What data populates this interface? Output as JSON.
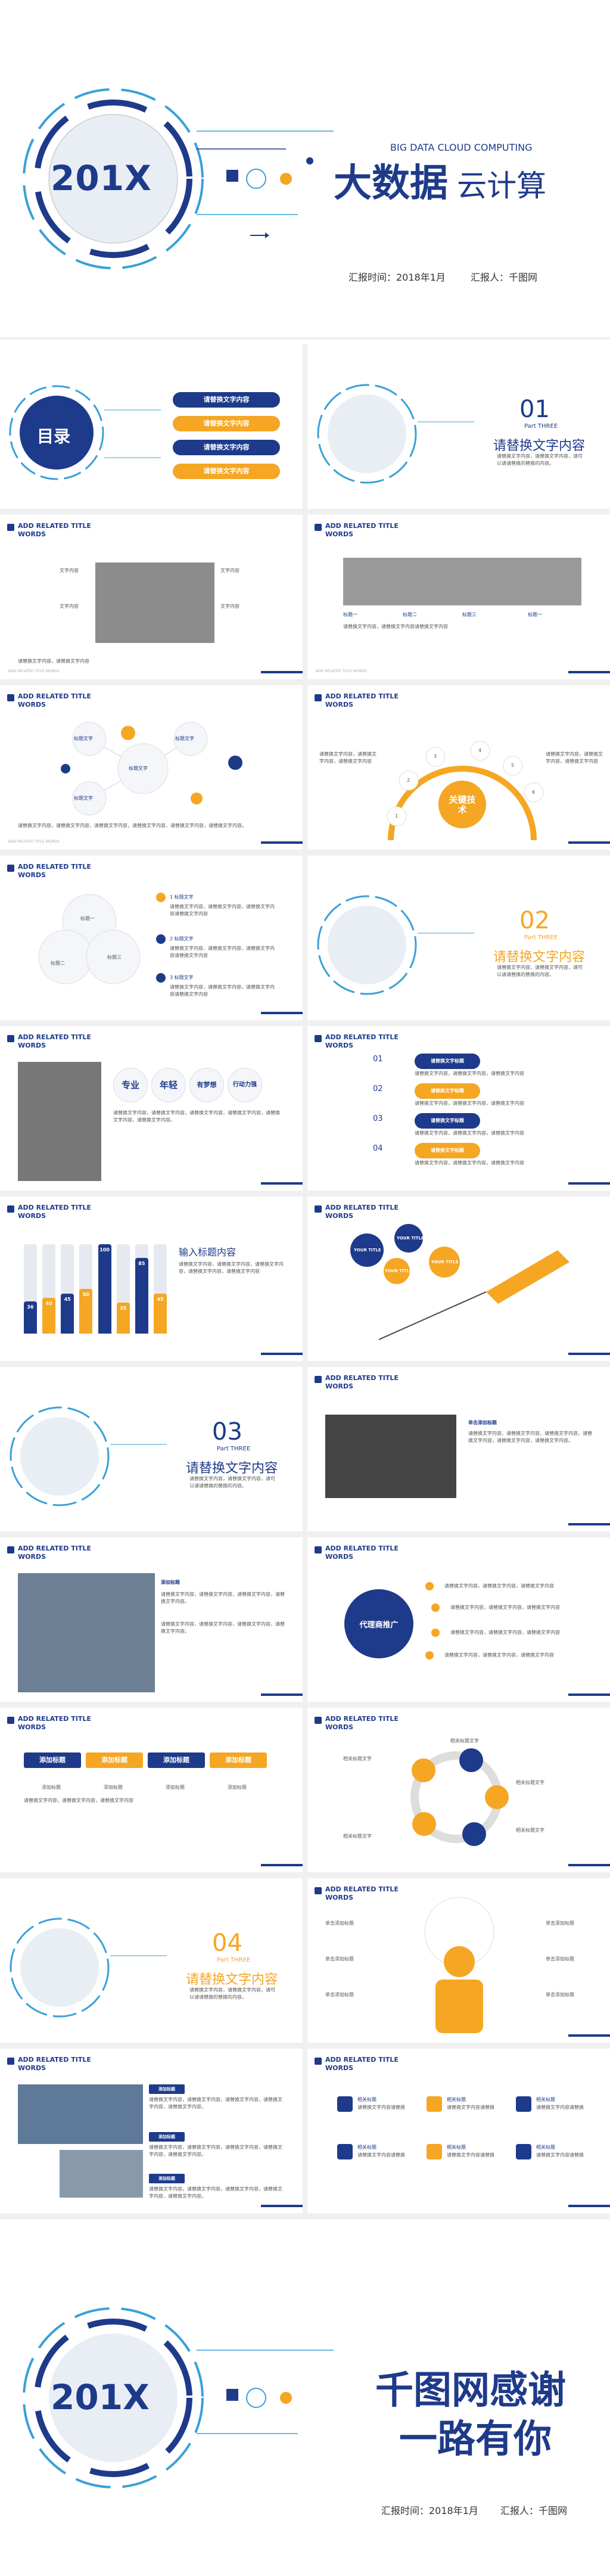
{
  "cover": {
    "brand_number": "201X",
    "subtitle_en": "BIG DATA CLOUD COMPUTING",
    "title_main": "大数据",
    "title_sub": "云计算",
    "report_time": "汇报时间：2018年1月",
    "reporter": "汇报人：千图网"
  },
  "toc": {
    "label": "目录",
    "items": [
      "请替换文字内容",
      "请替换文字内容",
      "请替换文字内容",
      "请替换文字内容"
    ]
  },
  "section1": {
    "number": "01",
    "part": "Part THREE",
    "title": "请替换文字内容",
    "desc": "请替换文字内容，请替换文字内容，请可以请请替换的替换的内容。"
  },
  "section2": {
    "number": "02",
    "part": "Part THREE",
    "title": "请替换文字内容",
    "desc": "请替换文字内容，请替换文字内容，请可以请请替换的替换的内容。"
  },
  "section3": {
    "number": "03",
    "part": "Part THREE",
    "title": "请替换文字内容",
    "desc": "请替换文字内容，请替换文字内容，请可以请请替换的替换的内容。"
  },
  "section4": {
    "number": "04",
    "part": "Part THREE",
    "title": "请替换文字内容",
    "desc": "请替换文字内容，请替换文字内容，请可以请请替换的替换的内容。"
  },
  "header": {
    "title": "ADD RELATED TITLE WORDS"
  },
  "footer": {
    "text": "ADD RELATED TITLE WORDS"
  },
  "slide_text_photos": {
    "labels": [
      "文字内容",
      "文字内容",
      "文字内容",
      "文字内容"
    ],
    "body": "请替换文字内容，请替换文字内容"
  },
  "slide_four_items": {
    "labels": [
      "标题一",
      "标题二",
      "标题三",
      "标题一"
    ],
    "body": "请替换文字内容，请替换文字内容请替换文字内容"
  },
  "slide_bubbles": {
    "center": "标题文字",
    "items": [
      "标题文字",
      "标题文字",
      "标题文字"
    ],
    "body": "请替换文字内容，请替换文字内容，请替换文字内容，请替换文字内容，请替换文字内容，请替换文字内容。"
  },
  "slide_keytech": {
    "center": "关键技术",
    "numbers": [
      "1",
      "2",
      "3",
      "4",
      "5",
      "6"
    ],
    "body": "请替换文字内容，请替换文字内容，请替换文字内容"
  },
  "slide_3circles": {
    "labels": [
      "标题一",
      "标题二",
      "标题三"
    ],
    "items": [
      "1 标题文字",
      "2 标题文字",
      "3 标题文字"
    ],
    "body": "请替换文字内容，请替换文字内容，请替换文字内容请替换文字内容"
  },
  "slide_tags": {
    "tags": [
      "专业",
      "年轻",
      "有梦想",
      "行动力强"
    ],
    "body": "请替换文字内容，请替换文字内容，请替换文字内容，请替换文字内容，请替换文字内容，请替换文字内容。"
  },
  "slide_steps": {
    "numbers": [
      "01",
      "02",
      "03",
      "04"
    ],
    "labels": [
      "请替换文字标题",
      "请替换文字标题",
      "请替换文字标题",
      "请替换文字标题"
    ],
    "body": "请替换文字内容，请替换文字内容，请替换文字内容"
  },
  "slide_bars": {
    "title": "输入标题内容",
    "values": [
      36,
      40,
      45,
      50,
      100,
      35,
      85,
      45
    ],
    "body": "请替换文字内容，请替换文字内容，请替换文字内容，请替换文字内容，请替换文字内容"
  },
  "slide_pen": {
    "labels": [
      "YOUR TITLE",
      "YOUR TITLE",
      "YOUR TITLE",
      "YOUR TITLE"
    ]
  },
  "slide_hands": {
    "heading": "单击添加标题",
    "body": "请替换文字内容，请替换文字内容，请替换文字内容，请替换文字内容，请替换文字内容，请替换文字内容。"
  },
  "slide_stairs": {
    "heading": "添加标题",
    "body": "请替换文字内容，请替换文字内容，请替换文字内容，请替换文字内容。"
  },
  "slide_agent": {
    "center": "代理商推广",
    "body": "请替换文字内容，请替换文字内容，请替换文字内容"
  },
  "slide_arrows": {
    "arrows": [
      "添加标题",
      "添加标题",
      "添加标题",
      "添加标题"
    ],
    "labels": [
      "添加标题",
      "添加标题",
      "添加标题",
      "添加标题"
    ],
    "body": "请替换文字内容，请替换文字内容，请替换文字内容"
  },
  "slide_cycle": {
    "labels": [
      "相关标题文字",
      "相关标题文字",
      "相关标题文字",
      "相关标题文字",
      "相关标题文字"
    ]
  },
  "slide_person": {
    "labels": [
      "单击添加标题",
      "单击添加标题",
      "单击添加标题",
      "单击添加标题",
      "单击添加标题",
      "单击添加标题"
    ]
  },
  "slide_office": {
    "tags": [
      "添加标题",
      "添加标题",
      "添加标题"
    ],
    "body": "请替换文字内容，请替换文字内容，请替换文字内容，请替换文字内容，请替换文字内容。"
  },
  "slide_icons": {
    "labels": [
      "相关标题",
      "相关标题",
      "相关标题",
      "相关标题",
      "相关标题",
      "相关标题"
    ],
    "body": "请替换文字内容请替换"
  },
  "end": {
    "brand_number": "201X",
    "thanks_1": "千图网感谢",
    "thanks_2": "一路有你",
    "report_time": "汇报时间：2018年1月",
    "reporter": "汇报人：千图网"
  },
  "colors": {
    "navy": "#1e3a8a",
    "amber": "#f5a623",
    "light_blue": "#3aa0d8"
  }
}
